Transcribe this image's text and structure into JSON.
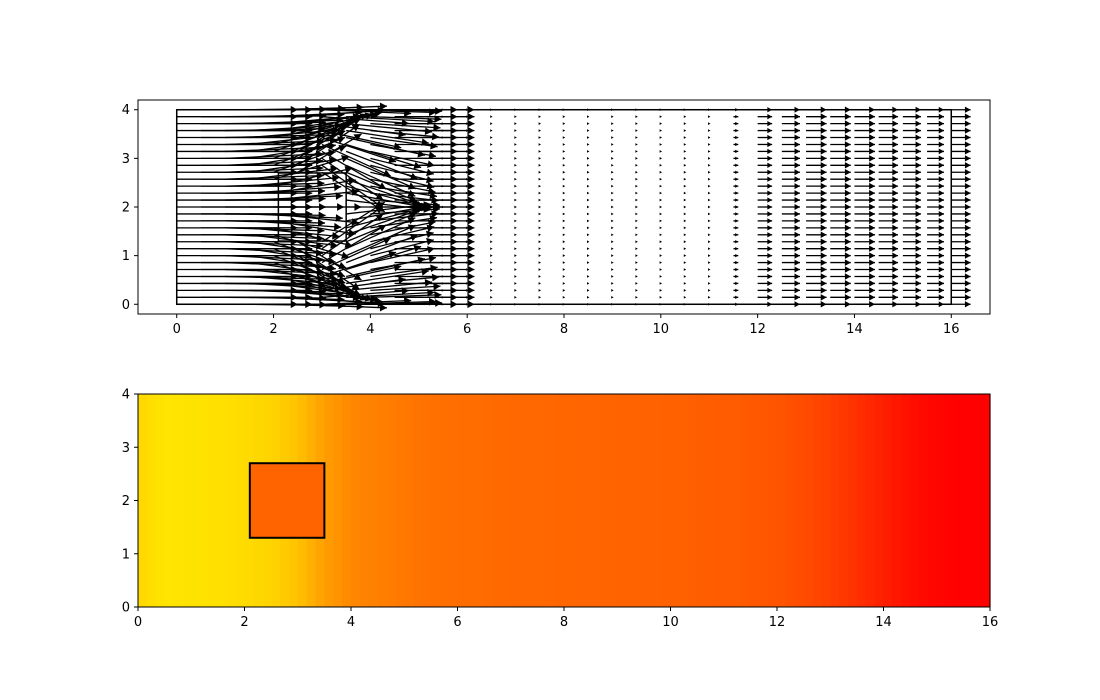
{
  "chart_data": [
    {
      "type": "quiver",
      "title": "",
      "xlabel": "",
      "ylabel": "",
      "xlim": [
        -0.8,
        16.8
      ],
      "ylim": [
        -0.2,
        4.2
      ],
      "xticks": [
        0,
        2,
        4,
        6,
        8,
        10,
        12,
        14,
        16
      ],
      "yticks": [
        0,
        1,
        2,
        3,
        4
      ],
      "grid": false,
      "domain_rect": {
        "x": [
          0,
          16
        ],
        "y": [
          0,
          4
        ]
      },
      "obstacle": {
        "x": [
          2.1,
          3.5
        ],
        "y": [
          1.3,
          2.7
        ]
      },
      "x": [
        0.0,
        0.5,
        1.0,
        1.5,
        2.0,
        2.5,
        3.0,
        3.5,
        4.0,
        4.5,
        5.0,
        5.5,
        6.0,
        6.5,
        7.0,
        7.5,
        8.0,
        8.5,
        9.0,
        9.5,
        10.0,
        10.5,
        11.0,
        11.5,
        12.0,
        12.5,
        13.0,
        13.5,
        14.0,
        14.5,
        15.0,
        15.5,
        16.0
      ],
      "y_range": [
        0.0,
        4.0
      ],
      "y_count": 29,
      "u_by_column": [
        5.0,
        4.6,
        4.2,
        4.0,
        3.8,
        3.8,
        3.8,
        3.8,
        3.0,
        2.6,
        2.3,
        0.05,
        0.05,
        0.05,
        0.05,
        0.05,
        0.05,
        0.05,
        0.05,
        0.05,
        0.05,
        0.05,
        0.05,
        0.2,
        0.6,
        0.75,
        0.85,
        0.85,
        0.85,
        0.8,
        0.75,
        0.7,
        0.8
      ]
    },
    {
      "type": "heatmap",
      "title": "",
      "xlabel": "",
      "ylabel": "",
      "xlim": [
        0,
        16
      ],
      "ylim": [
        0,
        4
      ],
      "xticks": [
        0,
        2,
        4,
        6,
        8,
        10,
        12,
        14,
        16
      ],
      "yticks": [
        0,
        1,
        2,
        3,
        4
      ],
      "grid": false,
      "colormap": "autumn",
      "obstacle": {
        "x": [
          2.1,
          3.5
        ],
        "y": [
          1.3,
          2.7
        ]
      },
      "obstacle_color": "#ff6400",
      "x": [
        0.0,
        0.5,
        1.0,
        1.5,
        2.0,
        2.5,
        3.0,
        3.5,
        4.0,
        4.5,
        5.0,
        5.5,
        6.0,
        6.5,
        7.0,
        7.5,
        8.0,
        8.5,
        9.0,
        9.5,
        10.0,
        10.5,
        11.0,
        11.5,
        12.0,
        12.5,
        13.0,
        13.5,
        14.0,
        14.5,
        15.0,
        15.5,
        16.0
      ],
      "values": [
        0.84,
        0.9,
        0.89,
        0.88,
        0.86,
        0.83,
        0.76,
        0.62,
        0.53,
        0.5,
        0.47,
        0.44,
        0.43,
        0.42,
        0.41,
        0.405,
        0.4,
        0.395,
        0.39,
        0.385,
        0.38,
        0.37,
        0.36,
        0.35,
        0.33,
        0.3,
        0.25,
        0.19,
        0.12,
        0.06,
        0.02,
        0.005,
        0.0
      ]
    }
  ]
}
